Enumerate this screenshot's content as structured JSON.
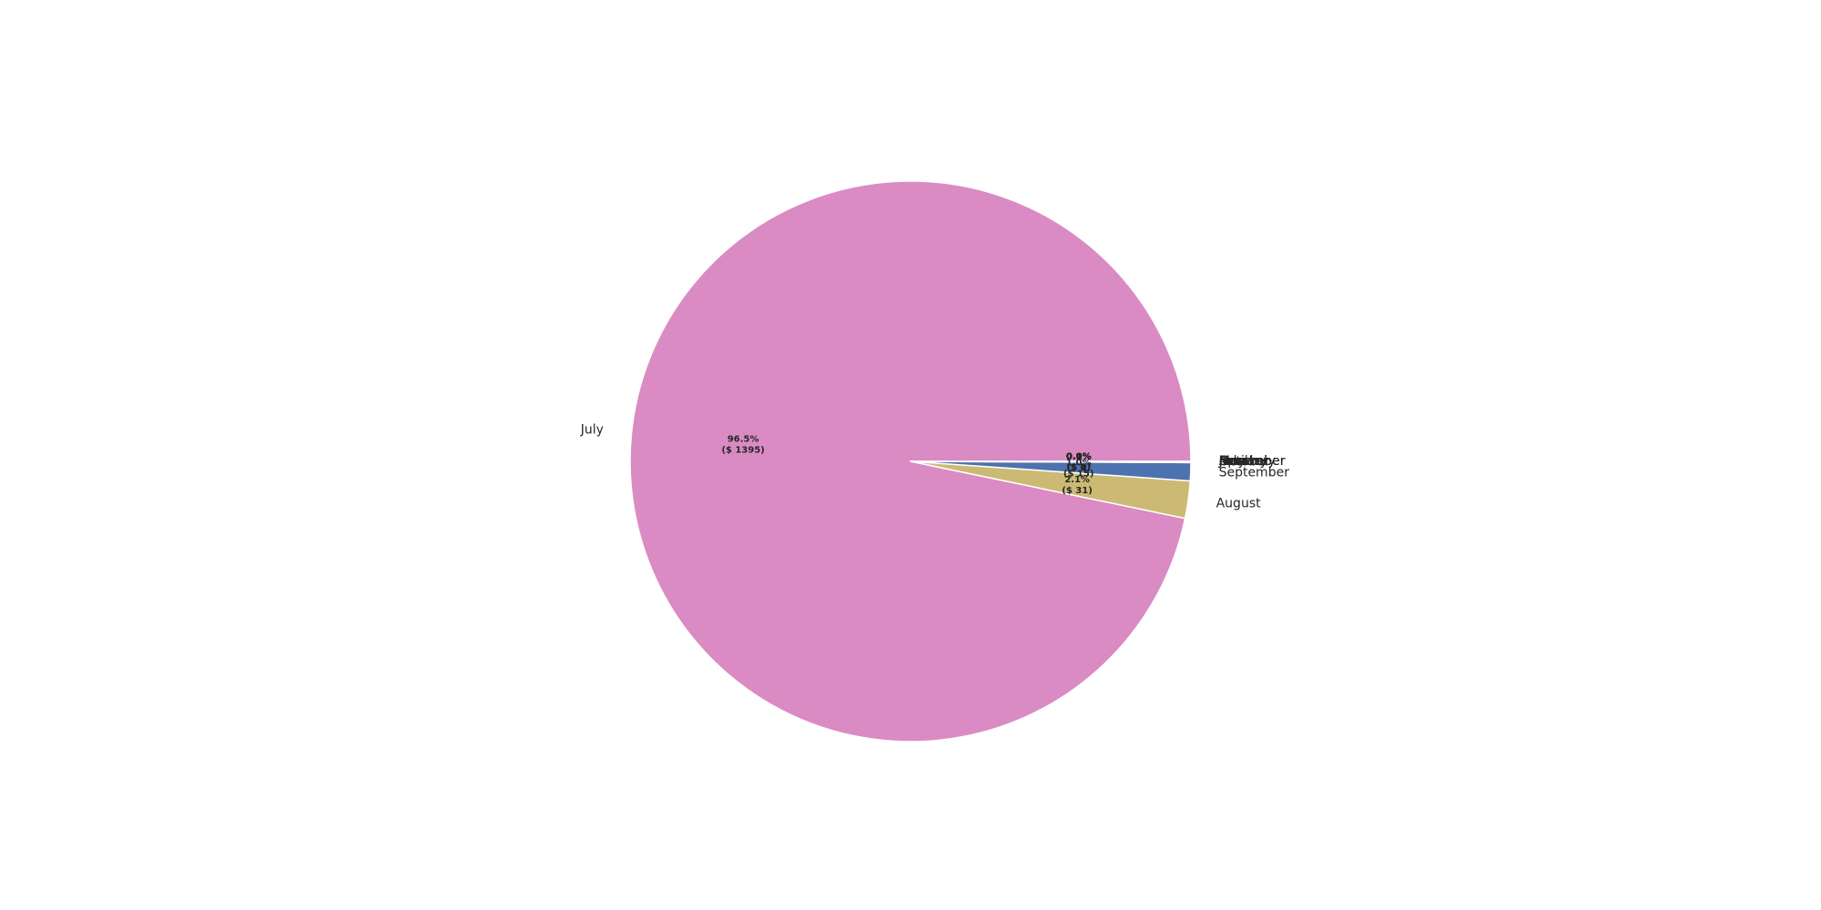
{
  "chart_data": {
    "type": "pie",
    "title": "",
    "categories": [
      "July",
      "August",
      "September",
      "October",
      "November",
      "December",
      "January",
      "February",
      "March",
      "April",
      "May",
      "June"
    ],
    "values": [
      1395,
      31,
      15,
      1,
      0,
      0,
      0,
      0,
      0,
      0,
      0,
      0
    ],
    "percent_labels": [
      "96.5%",
      "2.1%",
      "1.0%",
      "0.1%",
      "0.0%",
      "0.0%",
      "0.0%",
      "0.0%",
      "0.0%",
      "0.0%",
      "0.0%",
      "0.0%"
    ],
    "value_labels": [
      "($ 1395)",
      "($ 31)",
      "($ 15)",
      "($ 1)",
      "($ 0)",
      "($ 0)",
      "($ 0)",
      "($ 0)",
      "($ 0)",
      "($ 0)",
      "($ 0)",
      "($ 0)"
    ],
    "colors": [
      "#da8bc3",
      "#ccb974",
      "#4c72b0",
      "#dd8452",
      "#55a868",
      "#c44e52",
      "#8172b3",
      "#937860",
      "#8c8c8c",
      "#64b5cd",
      "#4c72b0",
      "#dd8452"
    ],
    "start_angle_deg": 0,
    "direction": "counterclockwise",
    "legend": "none"
  }
}
